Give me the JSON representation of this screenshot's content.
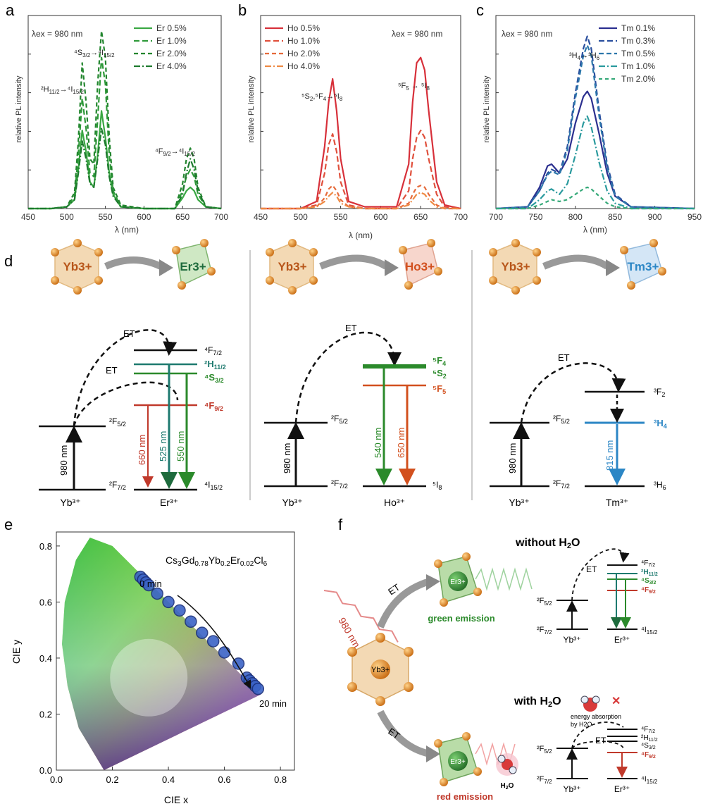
{
  "panels": {
    "a": {
      "letter": "a",
      "ylabel": "relative PL intensity",
      "xlabel": "λ (nm)",
      "xticks": [
        "450",
        "500",
        "550",
        "600",
        "650",
        "700"
      ],
      "excitation": "λex = 980 nm",
      "legend": [
        "Er 0.5%",
        "Er 1.0%",
        "Er 2.0%",
        "Er 4.0%"
      ],
      "peak_labels": [
        "2H11/2→4I15/2",
        "4S3/2→4I15/2",
        "4F9/2→4I15/2"
      ]
    },
    "b": {
      "letter": "b",
      "ylabel": "relative PL intensity",
      "xlabel": "λ (nm)",
      "xticks": [
        "450",
        "500",
        "550",
        "600",
        "650",
        "700"
      ],
      "excitation": "λex = 980 nm",
      "legend": [
        "Ho 0.5%",
        "Ho 1.0%",
        "Ho 2.0%",
        "Ho 4.0%"
      ],
      "peak_labels": [
        "5S2,5F4→5I8",
        "5F5→5I8"
      ]
    },
    "c": {
      "letter": "c",
      "ylabel": "relative PL intensity",
      "xlabel": "λ (nm)",
      "xticks": [
        "700",
        "750",
        "800",
        "850",
        "900",
        "950"
      ],
      "excitation": "λex = 980 nm",
      "legend": [
        "Tm 0.1%",
        "Tm 0.3%",
        "Tm 0.5%",
        "Tm 1.0%",
        "Tm 2.0%"
      ],
      "peak_labels": [
        "3H4→3H6"
      ]
    },
    "d": {
      "letter": "d",
      "sub": [
        {
          "donor": "Yb3+",
          "acceptor": "Er3+",
          "et_labels": [
            "ET",
            "ET"
          ],
          "yb_levels": [
            "2F5/2",
            "2F7/2"
          ],
          "pump": "980 nm",
          "levels": [
            "4F7/2",
            "2H11/2",
            "4S3/2",
            "4F9/2",
            "4I15/2"
          ],
          "emissions": [
            "660 nm",
            "525 nm",
            "550 nm"
          ],
          "bottom": [
            "Yb3+",
            "Er3+"
          ]
        },
        {
          "donor": "Yb3+",
          "acceptor": "Ho3+",
          "et_labels": [
            "ET"
          ],
          "yb_levels": [
            "2F5/2",
            "2F7/2"
          ],
          "pump": "980 nm",
          "levels": [
            "5F4",
            "5S2",
            "5F5",
            "5I8"
          ],
          "emissions": [
            "540 nm",
            "650 nm"
          ],
          "bottom": [
            "Yb3+",
            "Ho3+"
          ]
        },
        {
          "donor": "Yb3+",
          "acceptor": "Tm3+",
          "et_labels": [
            "ET"
          ],
          "yb_levels": [
            "2F5/2",
            "2F7/2"
          ],
          "pump": "980 nm",
          "levels": [
            "3F2",
            "3H4",
            "3H6"
          ],
          "emissions": [
            "815 nm"
          ],
          "bottom": [
            "Yb3+",
            "Tm3+"
          ]
        }
      ]
    },
    "e": {
      "letter": "e",
      "composition": "Cs3Gd0.78Yb0.2Er0.02Cl6",
      "xlabel": "CIE x",
      "ylabel": "CIE y",
      "xticks": [
        "0.0",
        "0.2",
        "0.4",
        "0.6",
        "0.8"
      ],
      "yticks": [
        "0.0",
        "0.2",
        "0.4",
        "0.6",
        "0.8"
      ],
      "start_label": "0 min",
      "end_label": "20 min"
    },
    "f": {
      "letter": "f",
      "pump": "980 nm",
      "center": "Yb3+",
      "et": "ET",
      "top_title": "without H2O",
      "bottom_title": "with H2O",
      "green_label": "green emission",
      "red_label": "red emission",
      "er_label": "Er3+",
      "h2o": "H2O",
      "absorb_note_1": "energy absorption",
      "absorb_note_2": "by H2O"
    }
  },
  "chart_data": [
    {
      "type": "line",
      "title": "",
      "xlabel": "λ (nm)",
      "ylabel": "relative PL intensity",
      "xlim": [
        450,
        700
      ],
      "ylim": [
        0,
        1
      ],
      "x": [
        450,
        480,
        500,
        510,
        515,
        520,
        525,
        530,
        535,
        540,
        545,
        550,
        555,
        560,
        570,
        600,
        640,
        650,
        655,
        660,
        665,
        670,
        680,
        700
      ],
      "series": [
        {
          "name": "Er 0.5%",
          "values": [
            0,
            0,
            0.01,
            0.05,
            0.22,
            0.44,
            0.32,
            0.15,
            0.12,
            0.3,
            0.55,
            0.4,
            0.2,
            0.08,
            0.01,
            0,
            0,
            0.06,
            0.1,
            0.12,
            0.1,
            0.05,
            0.01,
            0
          ]
        },
        {
          "name": "Er 1.0%",
          "values": [
            0,
            0,
            0.01,
            0.07,
            0.3,
            0.62,
            0.45,
            0.2,
            0.18,
            0.5,
            0.85,
            0.7,
            0.3,
            0.1,
            0.01,
            0,
            0,
            0.1,
            0.18,
            0.22,
            0.18,
            0.08,
            0.01,
            0
          ]
        },
        {
          "name": "Er 2.0%",
          "values": [
            0,
            0,
            0.01,
            0.09,
            0.38,
            0.82,
            0.6,
            0.28,
            0.25,
            0.7,
            1.0,
            0.85,
            0.4,
            0.12,
            0.02,
            0,
            0,
            0.14,
            0.28,
            0.34,
            0.28,
            0.12,
            0.01,
            0
          ]
        },
        {
          "name": "Er 4.0%",
          "values": [
            0,
            0,
            0.01,
            0.05,
            0.2,
            0.38,
            0.28,
            0.14,
            0.12,
            0.28,
            0.45,
            0.36,
            0.18,
            0.07,
            0.01,
            0,
            0,
            0.08,
            0.2,
            0.28,
            0.22,
            0.1,
            0.01,
            0
          ]
        }
      ]
    },
    {
      "type": "line",
      "title": "",
      "xlabel": "λ (nm)",
      "ylabel": "relative PL intensity",
      "xlim": [
        450,
        700
      ],
      "ylim": [
        0,
        1
      ],
      "x": [
        450,
        500,
        520,
        530,
        535,
        540,
        545,
        550,
        560,
        580,
        620,
        635,
        640,
        645,
        650,
        655,
        660,
        670,
        680,
        700
      ],
      "series": [
        {
          "name": "Ho 0.5%",
          "values": [
            0,
            0,
            0.04,
            0.35,
            0.6,
            0.73,
            0.55,
            0.28,
            0.04,
            0.01,
            0.01,
            0.25,
            0.6,
            0.82,
            0.85,
            0.78,
            0.55,
            0.15,
            0.02,
            0
          ]
        },
        {
          "name": "Ho 1.0%",
          "values": [
            0,
            0,
            0.02,
            0.2,
            0.36,
            0.42,
            0.32,
            0.15,
            0.02,
            0,
            0,
            0.1,
            0.28,
            0.4,
            0.44,
            0.4,
            0.28,
            0.08,
            0.01,
            0
          ]
        },
        {
          "name": "Ho 2.0%",
          "values": [
            0,
            0,
            0.01,
            0.06,
            0.11,
            0.13,
            0.1,
            0.05,
            0.01,
            0,
            0,
            0.03,
            0.08,
            0.12,
            0.13,
            0.12,
            0.08,
            0.02,
            0,
            0
          ]
        },
        {
          "name": "Ho 4.0%",
          "values": [
            0,
            0,
            0.01,
            0.04,
            0.07,
            0.09,
            0.07,
            0.03,
            0.01,
            0,
            0,
            0.02,
            0.05,
            0.08,
            0.09,
            0.08,
            0.05,
            0.01,
            0,
            0
          ]
        }
      ]
    },
    {
      "type": "line",
      "title": "",
      "xlabel": "λ (nm)",
      "ylabel": "relative PL intensity",
      "xlim": [
        700,
        950
      ],
      "ylim": [
        0,
        1
      ],
      "x": [
        700,
        740,
        755,
        765,
        770,
        780,
        790,
        800,
        810,
        815,
        820,
        830,
        840,
        850,
        870,
        950
      ],
      "series": [
        {
          "name": "Tm 0.1%",
          "values": [
            0,
            0.01,
            0.12,
            0.24,
            0.25,
            0.2,
            0.28,
            0.48,
            0.63,
            0.66,
            0.62,
            0.42,
            0.2,
            0.07,
            0.01,
            0
          ]
        },
        {
          "name": "Tm 0.3%",
          "values": [
            0,
            0.01,
            0.1,
            0.2,
            0.22,
            0.2,
            0.35,
            0.65,
            0.9,
            0.97,
            0.9,
            0.55,
            0.25,
            0.08,
            0.01,
            0
          ]
        },
        {
          "name": "Tm 0.5%",
          "values": [
            0,
            0.01,
            0.1,
            0.19,
            0.21,
            0.19,
            0.33,
            0.62,
            0.86,
            0.92,
            0.86,
            0.52,
            0.23,
            0.07,
            0.01,
            0
          ]
        },
        {
          "name": "Tm 1.0%",
          "values": [
            0,
            0,
            0.05,
            0.1,
            0.11,
            0.08,
            0.14,
            0.3,
            0.48,
            0.52,
            0.46,
            0.26,
            0.1,
            0.03,
            0,
            0
          ]
        },
        {
          "name": "Tm 2.0%",
          "values": [
            0,
            0,
            0.02,
            0.04,
            0.05,
            0.04,
            0.05,
            0.08,
            0.11,
            0.12,
            0.11,
            0.07,
            0.03,
            0.01,
            0,
            0
          ]
        }
      ]
    },
    {
      "type": "scatter",
      "title": "",
      "xlabel": "CIE x",
      "ylabel": "CIE y",
      "xlim": [
        0,
        0.85
      ],
      "ylim": [
        0,
        0.85
      ],
      "series": [
        {
          "name": "",
          "x": [
            0.3,
            0.31,
            0.32,
            0.33,
            0.36,
            0.4,
            0.44,
            0.48,
            0.52,
            0.56,
            0.6,
            0.65,
            0.68,
            0.69,
            0.7,
            0.71,
            0.72
          ],
          "y": [
            0.69,
            0.68,
            0.67,
            0.66,
            0.63,
            0.6,
            0.57,
            0.53,
            0.49,
            0.46,
            0.42,
            0.38,
            0.33,
            0.32,
            0.31,
            0.3,
            0.29
          ]
        }
      ]
    }
  ]
}
